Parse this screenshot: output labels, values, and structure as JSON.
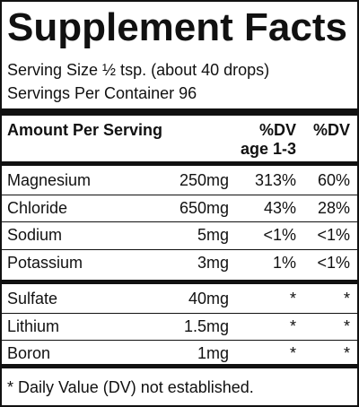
{
  "header": {
    "title": "Supplement Facts",
    "serving_size": "Serving Size ½ tsp. (about 40 drops)",
    "servings_per_container": "Servings Per Container 96"
  },
  "table": {
    "columns": [
      "Amount Per Serving",
      [
        "%DV",
        "age 1-3"
      ],
      "%DV"
    ],
    "sections": [
      {
        "rows": [
          [
            "Magnesium",
            "250mg",
            "313%",
            "60%"
          ],
          [
            "Chloride",
            "650mg",
            "43%",
            "28%"
          ],
          [
            "Sodium",
            "5mg",
            "<1%",
            "<1%"
          ],
          [
            "Potassium",
            "3mg",
            "1%",
            "<1%"
          ]
        ]
      },
      {
        "rows": [
          [
            "Sulfate",
            "40mg",
            "*",
            "*"
          ],
          [
            "Lithium",
            "1.5mg",
            "*",
            "*"
          ],
          [
            "Boron",
            "1mg",
            "*",
            "*"
          ]
        ]
      }
    ]
  },
  "footnote": "* Daily Value (DV) not established."
}
